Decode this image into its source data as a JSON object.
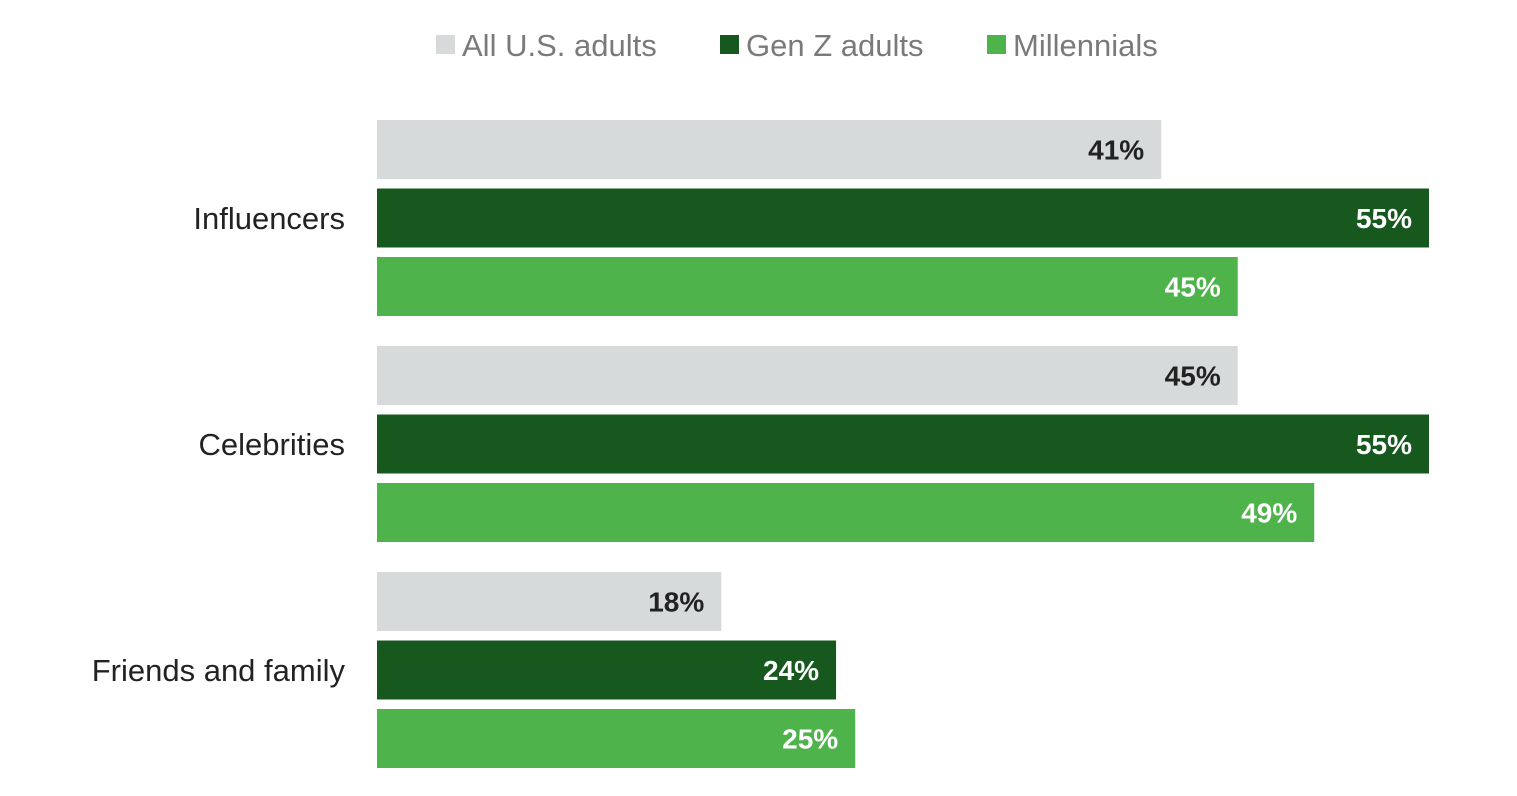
{
  "chart_data": {
    "type": "bar",
    "orientation": "horizontal",
    "categories": [
      "Influencers",
      "Celebrities",
      "Friends and family"
    ],
    "series": [
      {
        "name": "All U.S. adults",
        "values": [
          41,
          45,
          18
        ],
        "color": "#d6dada",
        "label_color": "#222222"
      },
      {
        "name": "Gen Z adults",
        "values": [
          55,
          55,
          24
        ],
        "color": "#17581e",
        "label_color": "#ffffff"
      },
      {
        "name": "Millennials",
        "values": [
          45,
          49,
          25
        ],
        "color": "#4db34a",
        "label_color": "#ffffff"
      }
    ],
    "value_labels": [
      [
        "41%",
        "45%",
        "18%"
      ],
      [
        "55%",
        "55%",
        "24%"
      ],
      [
        "45%",
        "49%",
        "25%"
      ]
    ],
    "xlim": [
      0,
      55
    ],
    "grid": false,
    "legend_position": "top"
  }
}
